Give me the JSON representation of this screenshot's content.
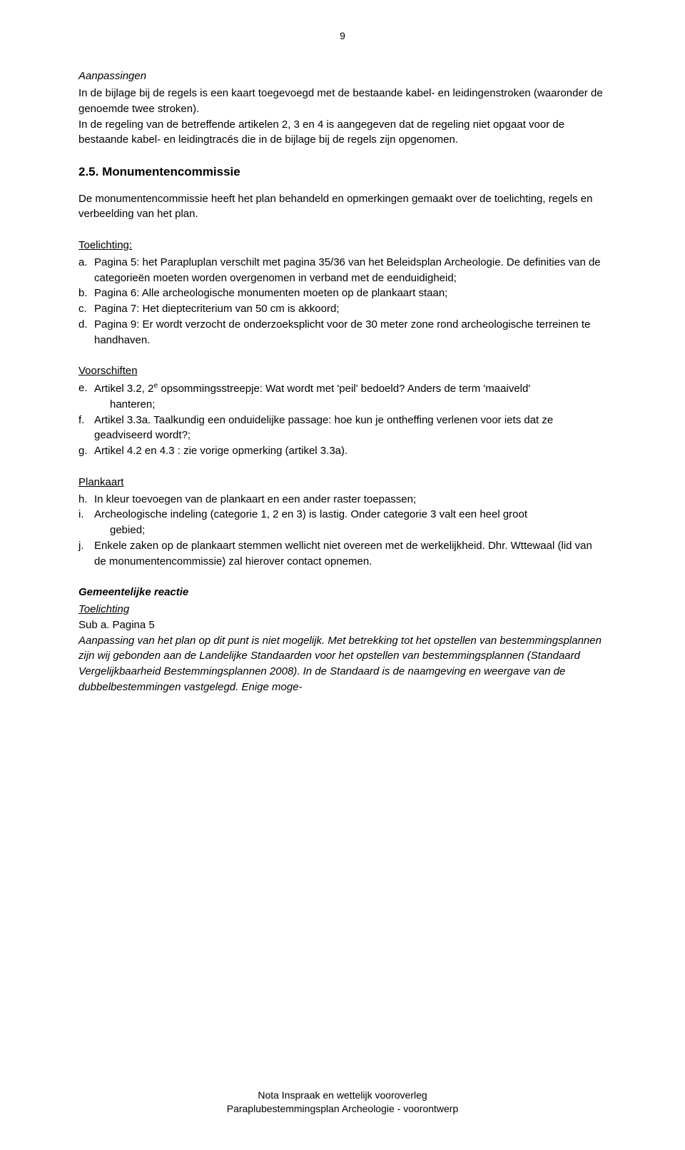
{
  "page_number": "9",
  "aanpassingen": {
    "heading": "Aanpassingen",
    "p1": "In de bijlage bij de regels is een kaart toegevoegd met de bestaande kabel- en leidingenstroken (waaronder de genoemde twee stroken).",
    "p2": "In de regeling van de betreffende artikelen 2, 3 en 4 is aangegeven dat de regeling niet opgaat voor de bestaande kabel- en leidingtracés die in de bijlage bij de regels zijn opgenomen."
  },
  "monumenten": {
    "heading": "2.5.  Monumentencommissie",
    "intro": "De monumentencommissie heeft het plan behandeld en opmerkingen gemaakt over de toelichting, regels en verbeelding van het plan.",
    "toelichting_label": "Toelichting:",
    "items_toelichting": {
      "a": {
        "marker": "a.",
        "text": "Pagina 5: het Parapluplan verschilt met pagina 35/36 van het Beleidsplan Archeologie. De definities van de categorieën moeten worden overgenomen in verband met de eenduidigheid;"
      },
      "b": {
        "marker": "b.",
        "text": "Pagina 6: Alle archeologische monumenten moeten op de plankaart staan;"
      },
      "c": {
        "marker": "c.",
        "text": "Pagina 7: Het dieptecriterium van 50 cm is akkoord;"
      },
      "d": {
        "marker": "d.",
        "text": "Pagina 9: Er wordt verzocht de onderzoeksplicht voor de 30 meter zone rond archeologische terreinen te handhaven."
      }
    },
    "voorschriften_label": "Voorschiften",
    "items_voorschriften": {
      "e": {
        "marker": "e.",
        "text_pre": "Artikel 3.2, 2",
        "sup": "e",
        "text_post": " opsommingsstreepje: Wat wordt met 'peil' bedoeld? Anders de term 'maaiveld'",
        "indent": "hanteren;"
      },
      "f": {
        "marker": "f.",
        "text": "Artikel 3.3a. Taalkundig een onduidelijke passage: hoe kun je ontheffing verlenen voor iets dat ze geadviseerd wordt?;"
      },
      "g": {
        "marker": "g.",
        "text": "Artikel 4.2 en 4.3 : zie vorige opmerking (artikel 3.3a)."
      }
    },
    "plankaart_label": "Plankaart",
    "items_plankaart": {
      "h": {
        "marker": "h.",
        "text": "In kleur toevoegen van de plankaart en een ander raster toepassen;"
      },
      "i": {
        "marker": "i.",
        "text": "Archeologische indeling (categorie 1, 2 en 3) is lastig. Onder categorie 3 valt een heel groot",
        "indent": "gebied;"
      },
      "j": {
        "marker": "j.",
        "text": "Enkele zaken op de plankaart stemmen wellicht niet overeen met de werkelijkheid. Dhr. Wttewaal (lid van de monumentencommissie) zal hierover contact opnemen."
      }
    }
  },
  "reactie": {
    "heading": "Gemeentelijke reactie",
    "sub1": "Toelichting",
    "sub2": "Sub a. Pagina 5",
    "body": "Aanpassing van het plan op dit punt is niet mogelijk. Met betrekking tot het opstellen van bestemmingsplannen zijn wij gebonden aan de Landelijke Standaarden voor het opstellen van bestemmingsplannen (Standaard Vergelijkbaarheid Bestemmingsplannen 2008). In de Standaard is de naamgeving en weergave van de dubbelbestemmingen vastgelegd. Enige moge-"
  },
  "footer": {
    "line1": "Nota Inspraak en wettelijk vooroverleg",
    "line2": "Paraplubestemmingsplan Archeologie - voorontwerp"
  }
}
